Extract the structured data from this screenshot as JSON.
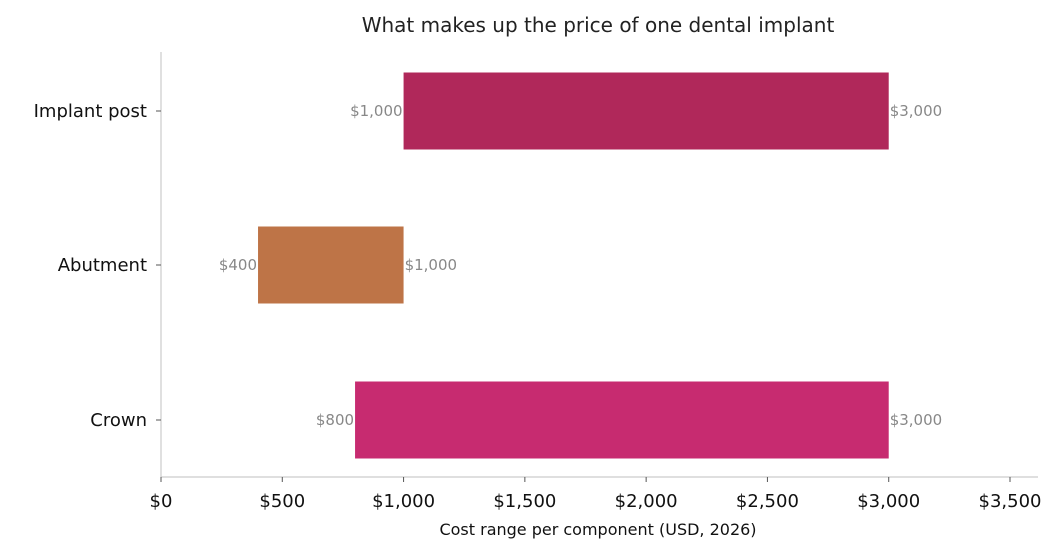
{
  "chart_data": {
    "type": "bar",
    "orientation": "horizontal-range",
    "title": "What makes up the price of one dental implant",
    "xlabel": "Cost range per component (USD, 2026)",
    "ylabel": "",
    "xlim": [
      0,
      3500
    ],
    "xticks": [
      0,
      500,
      1000,
      1500,
      2000,
      2500,
      3000,
      3500
    ],
    "xtick_labels": [
      "$0",
      "$500",
      "$1,000",
      "$1,500",
      "$2,000",
      "$2,500",
      "$3,000",
      "$3,500"
    ],
    "categories": [
      "Implant post",
      "Abutment",
      "Crown"
    ],
    "ranges": [
      {
        "category": "Implant post",
        "low": 1000,
        "high": 3000,
        "low_label": "$1,000",
        "high_label": "$3,000",
        "color": "#b0285a"
      },
      {
        "category": "Abutment",
        "low": 400,
        "high": 1000,
        "low_label": "$400",
        "high_label": "$1,000",
        "color": "#be7447"
      },
      {
        "category": "Crown",
        "low": 800,
        "high": 3000,
        "low_label": "$800",
        "high_label": "$3,000",
        "color": "#c72b70"
      }
    ],
    "grid": false,
    "legend": "none"
  }
}
